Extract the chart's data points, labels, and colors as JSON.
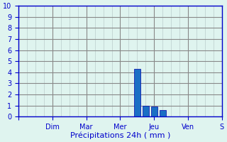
{
  "day_labels": [
    "",
    "Dim",
    "Mar",
    "Mer",
    "Jeu",
    "Ven",
    "S"
  ],
  "day_tick_positions": [
    0,
    8,
    16,
    24,
    32,
    40,
    48
  ],
  "bar_data": [
    {
      "x": 28,
      "height": 4.3
    },
    {
      "x": 30,
      "height": 1.0
    },
    {
      "x": 32,
      "height": 0.9
    },
    {
      "x": 34,
      "height": 0.6
    }
  ],
  "bar_color": "#1a6fc4",
  "bar_edge_color": "#0000aa",
  "bar_width": 1.5,
  "ylim": [
    0,
    10
  ],
  "xlim": [
    0,
    48
  ],
  "yticks": [
    0,
    1,
    2,
    3,
    4,
    5,
    6,
    7,
    8,
    9,
    10
  ],
  "xtick_minor_step": 2,
  "xlabel": "Précipitations 24h ( mm )",
  "xlabel_fontsize": 8,
  "tick_label_color": "#0000cc",
  "background_color": "#dff4ef",
  "grid_major_color": "#888888",
  "grid_minor_color": "#bbcccc",
  "axis_color": "#0000cc",
  "tick_fontsize": 7
}
